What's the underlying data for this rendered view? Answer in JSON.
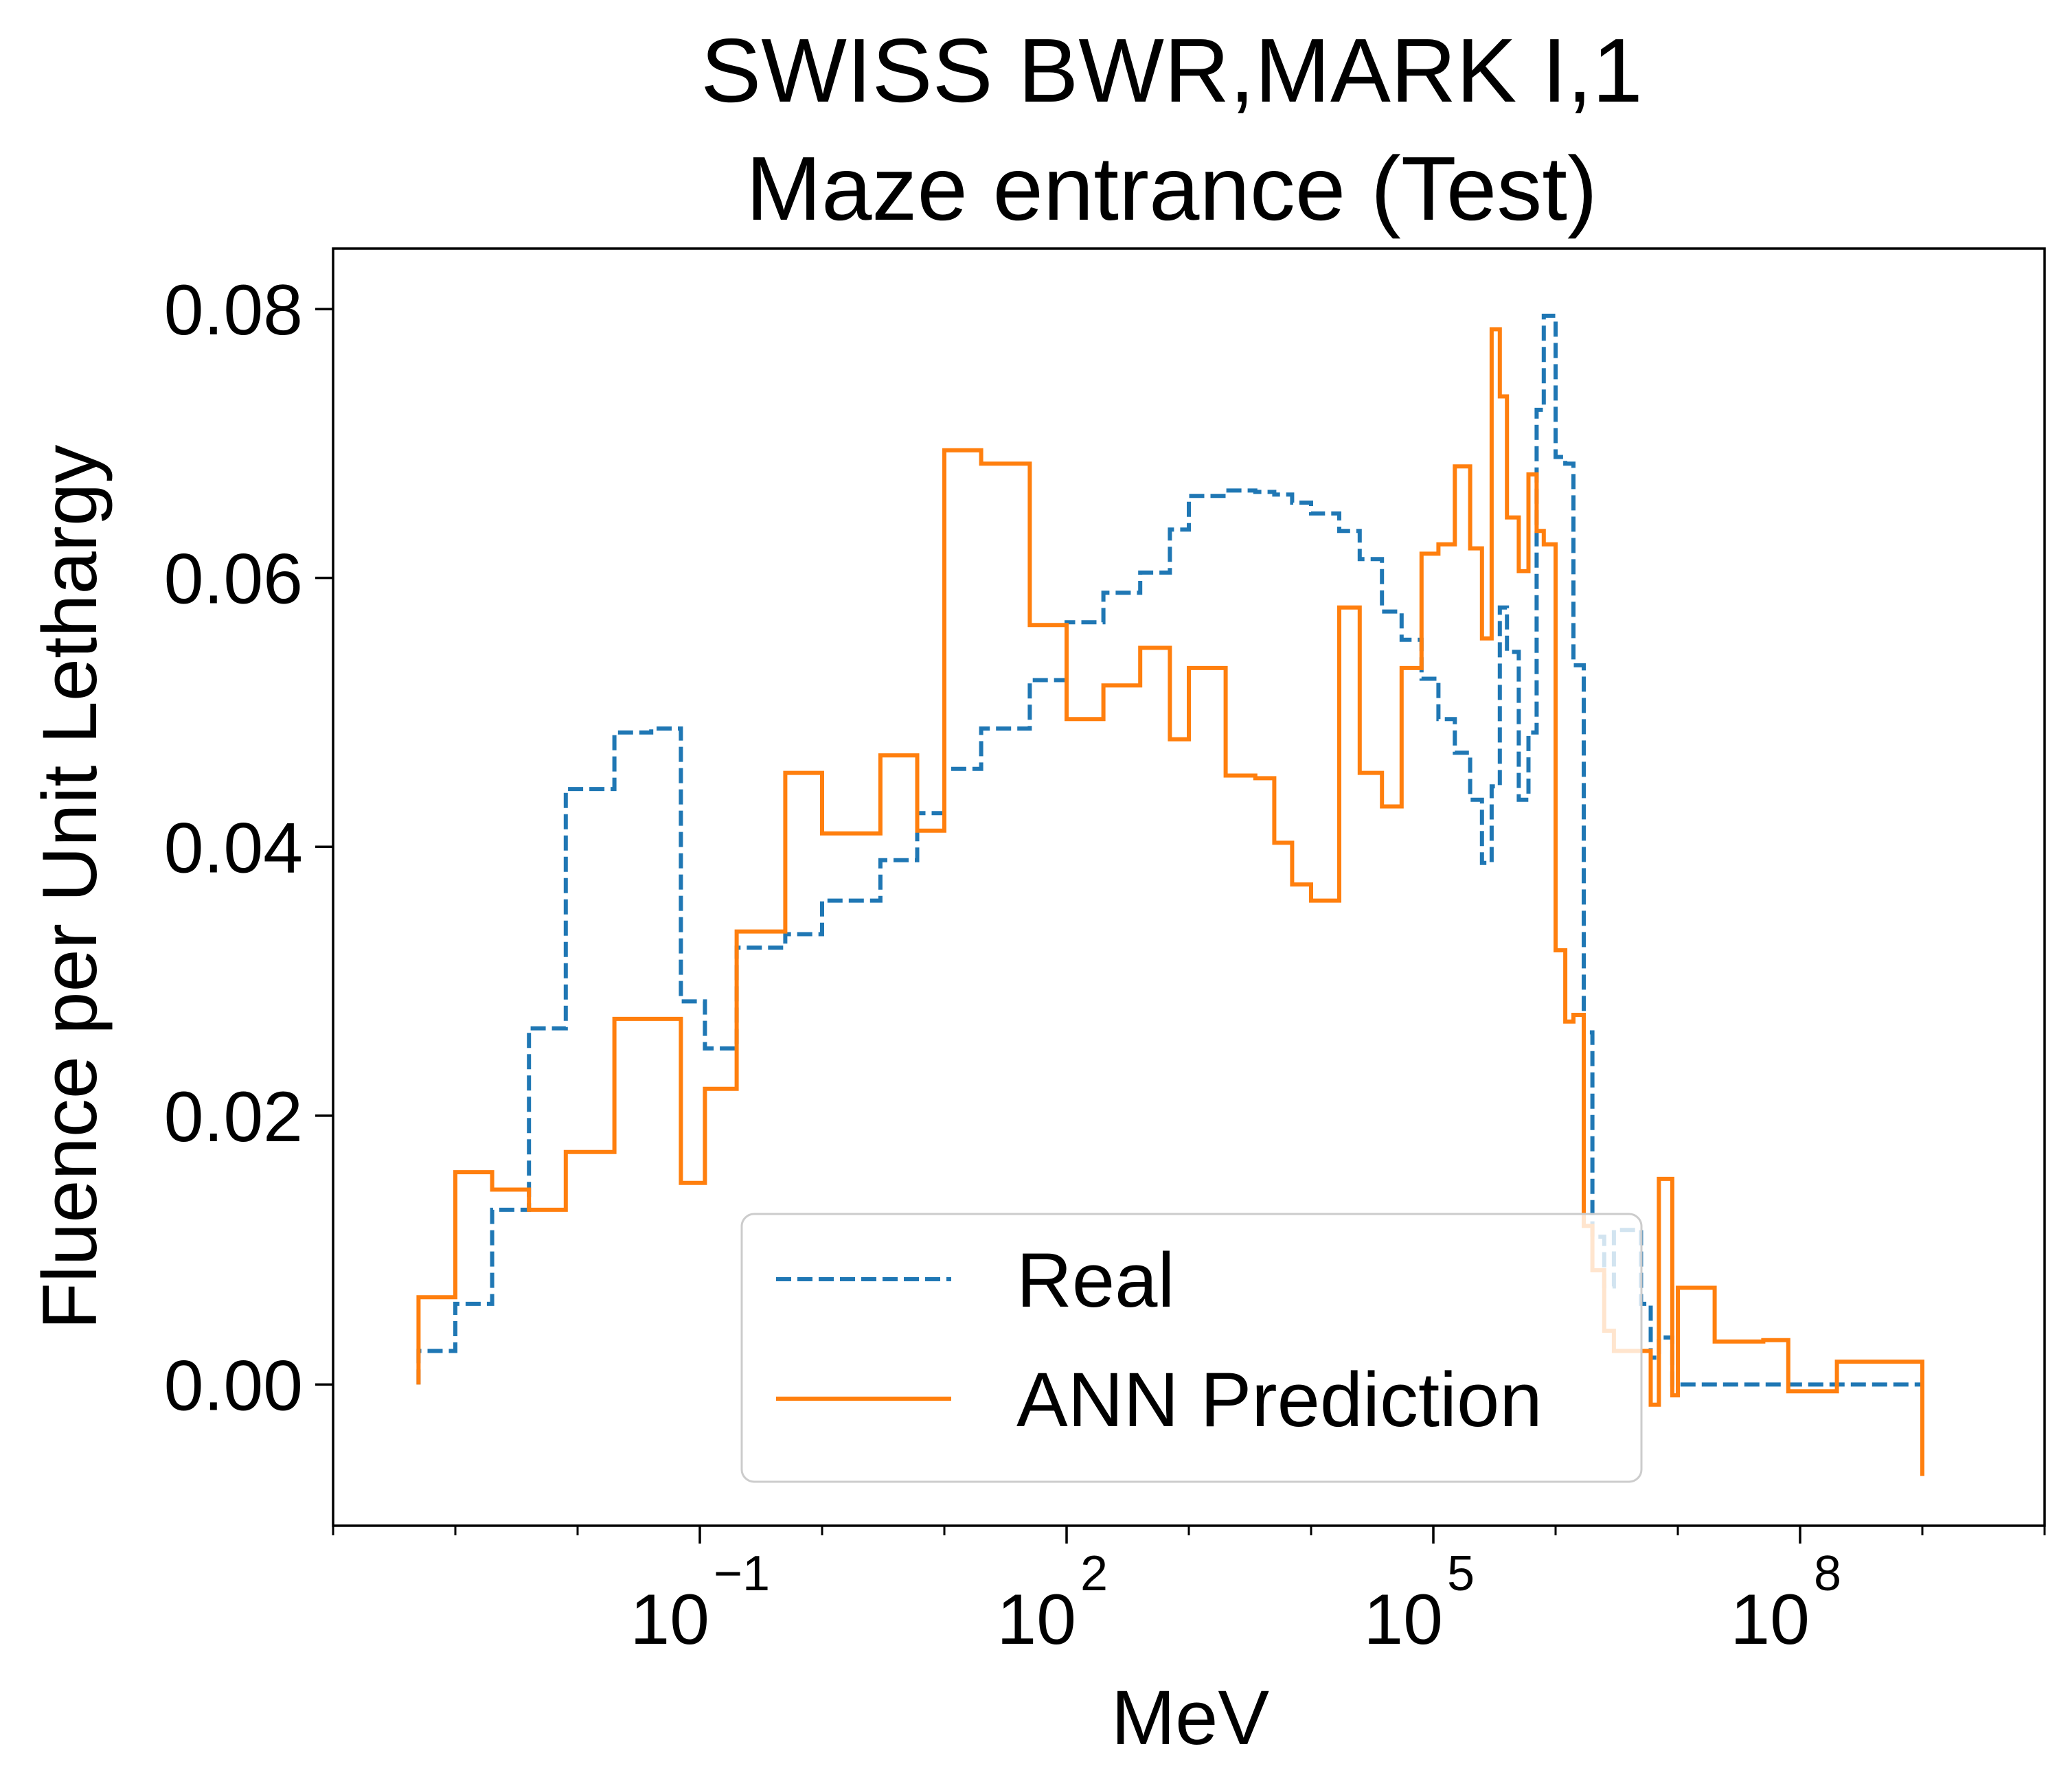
{
  "chart_data": {
    "type": "line",
    "subtype": "step",
    "title": "SWISS BWR,MARK I,1",
    "subtitle": "Maze entrance (Test)",
    "xlabel": "MeV",
    "ylabel": "Fluence per Unit Lethargy",
    "x_scale": "log",
    "xlim": [
      0.0001,
      10000000000.0
    ],
    "ylim": [
      -0.0105,
      0.0845
    ],
    "x_ticks": [
      {
        "value": 0.1,
        "base": "10",
        "exp": "−1"
      },
      {
        "value": 100,
        "base": "10",
        "exp": "2"
      },
      {
        "value": 100000,
        "base": "10",
        "exp": "5"
      },
      {
        "value": 100000000,
        "base": "10",
        "exp": "8"
      }
    ],
    "y_ticks": [
      {
        "value": 0.0,
        "label": "0.00"
      },
      {
        "value": 0.02,
        "label": "0.02"
      },
      {
        "value": 0.04,
        "label": "0.04"
      },
      {
        "value": 0.06,
        "label": "0.06"
      },
      {
        "value": 0.08,
        "label": "0.08"
      }
    ],
    "grid": false,
    "legend_position": "lower center",
    "series": [
      {
        "name": "Real",
        "color": "#1f77b4",
        "style": "dashed",
        "x": [
          0.0005,
          0.001,
          0.002,
          0.004,
          0.008,
          0.02,
          0.04,
          0.07,
          0.11,
          0.2,
          0.5,
          1,
          3,
          6,
          10,
          20,
          50,
          100,
          200,
          400,
          700,
          1000,
          2000,
          3500,
          5000,
          7000,
          10000,
          17000,
          25000,
          38000,
          55000,
          80000,
          110000,
          150000,
          200000,
          250000,
          300000,
          350000,
          400000,
          500000,
          600000,
          700000,
          800000,
          1000000,
          1200000,
          1400000,
          1700000,
          2000000,
          2500000,
          3000000,
          5000000,
          6000000,
          7000000,
          8000000,
          9000000,
          10000000,
          20000000,
          50000000,
          80000000,
          200000000,
          500000000,
          1000000000
        ],
        "y": [
          0.0025,
          0.006,
          0.013,
          0.0265,
          0.0443,
          0.0485,
          0.0488,
          0.0285,
          0.025,
          0.0325,
          0.0335,
          0.036,
          0.039,
          0.0425,
          0.0458,
          0.0488,
          0.0524,
          0.0567,
          0.0589,
          0.0604,
          0.0636,
          0.0661,
          0.0665,
          0.0664,
          0.0662,
          0.0656,
          0.0648,
          0.0635,
          0.0614,
          0.0575,
          0.0554,
          0.0525,
          0.0495,
          0.047,
          0.0435,
          0.0388,
          0.0445,
          0.0578,
          0.0545,
          0.0435,
          0.0485,
          0.0725,
          0.0795,
          0.069,
          0.0685,
          0.0535,
          0.0262,
          0.011,
          0.0073,
          0.0115,
          0.006,
          0.002,
          0.0035,
          0.0035,
          0.0,
          0.0,
          0.0,
          0.0,
          0.0,
          0.0,
          0.0,
          0.0
        ]
      },
      {
        "name": "ANN Prediction",
        "color": "#ff7f0e",
        "style": "solid",
        "x": [
          0.0005,
          0.001,
          0.002,
          0.004,
          0.008,
          0.02,
          0.04,
          0.07,
          0.11,
          0.2,
          0.5,
          1,
          3,
          6,
          10,
          20,
          50,
          100,
          200,
          400,
          700,
          1000,
          2000,
          3500,
          5000,
          7000,
          10000,
          17000,
          25000,
          38000,
          55000,
          80000,
          110000,
          150000,
          200000,
          250000,
          300000,
          350000,
          400000,
          500000,
          600000,
          700000,
          800000,
          1000000,
          1200000,
          1400000,
          1700000,
          2000000,
          2500000,
          3000000,
          5000000,
          6000000,
          7000000,
          8000000,
          9000000,
          10000000,
          20000000,
          50000000,
          80000000,
          200000000,
          500000000,
          1000000000
        ],
        "y": [
          0.0065,
          0.0158,
          0.0145,
          0.013,
          0.0173,
          0.0272,
          0.0272,
          0.015,
          0.022,
          0.0337,
          0.0455,
          0.041,
          0.0468,
          0.0412,
          0.0695,
          0.0685,
          0.0565,
          0.0495,
          0.052,
          0.0548,
          0.048,
          0.0533,
          0.0453,
          0.0451,
          0.0403,
          0.0372,
          0.036,
          0.0578,
          0.0455,
          0.043,
          0.0533,
          0.0618,
          0.0625,
          0.0683,
          0.0622,
          0.0555,
          0.0785,
          0.0735,
          0.0645,
          0.0605,
          0.0677,
          0.0635,
          0.0625,
          0.0323,
          0.027,
          0.0275,
          0.0118,
          0.0085,
          0.004,
          0.0025,
          0.0025,
          -0.0015,
          0.0153,
          0.0153,
          -0.0008,
          0.0072,
          0.0032,
          0.0033,
          -0.0005,
          0.0017,
          0.0017,
          -0.0068
        ]
      }
    ]
  }
}
